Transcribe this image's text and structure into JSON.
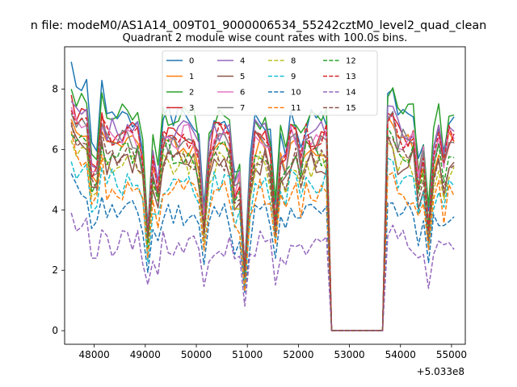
{
  "suptitle": "n file: modeM0/AS1A14_009T01_9000006534_55242cztM0_level2_quad_clean",
  "chart_data": {
    "type": "line",
    "title": "Quadrant 2 module wise count rates with 100.0s bins.",
    "xlabel": "",
    "ylabel": "",
    "x_offset_label": "+5.033e8",
    "xlim": [
      47420,
      55270
    ],
    "ylim": [
      -0.45,
      9.4
    ],
    "x_ticks": [
      48000,
      49000,
      50000,
      51000,
      52000,
      53000,
      54000,
      55000
    ],
    "x_tick_labels": [
      "48000",
      "49000",
      "50000",
      "51000",
      "52000",
      "53000",
      "54000",
      "55000"
    ],
    "y_ticks": [
      0,
      2,
      4,
      6,
      8
    ],
    "y_tick_labels": [
      "0",
      "2",
      "4",
      "6",
      "8"
    ],
    "legend_position": "top-center",
    "legend_ncol": 4,
    "series": [
      {
        "name": "0",
        "color": "#1f77b4",
        "dash": "solid",
        "base": 7.0,
        "first": 8.9
      },
      {
        "name": "1",
        "color": "#ff7f0e",
        "dash": "solid",
        "base": 6.2,
        "first": 7.0
      },
      {
        "name": "2",
        "color": "#2ca02c",
        "dash": "solid",
        "base": 7.1,
        "first": 8.0
      },
      {
        "name": "3",
        "color": "#d62728",
        "dash": "solid",
        "base": 6.5,
        "first": 7.8
      },
      {
        "name": "4",
        "color": "#9467bd",
        "dash": "solid",
        "base": 6.6,
        "first": 7.6
      },
      {
        "name": "5",
        "color": "#8c564b",
        "dash": "solid",
        "base": 5.6,
        "first": 6.8
      },
      {
        "name": "6",
        "color": "#e377c2",
        "dash": "solid",
        "base": 6.4,
        "first": 7.4
      },
      {
        "name": "7",
        "color": "#7f7f7f",
        "dash": "solid",
        "base": 6.3,
        "first": 7.2
      },
      {
        "name": "8",
        "color": "#bcbd22",
        "dash": "dashed",
        "base": 5.5,
        "first": 6.3
      },
      {
        "name": "9",
        "color": "#17becf",
        "dash": "dashed",
        "base": 4.9,
        "first": 5.6
      },
      {
        "name": "10",
        "color": "#1f77b4",
        "dash": "dashed",
        "base": 3.9,
        "first": 5.2
      },
      {
        "name": "11",
        "color": "#ff7f0e",
        "dash": "dashed",
        "base": 4.6,
        "first": 6.6
      },
      {
        "name": "12",
        "color": "#2ca02c",
        "dash": "dashed",
        "base": 5.9,
        "first": 6.5
      },
      {
        "name": "13",
        "color": "#d62728",
        "dash": "dashed",
        "base": 6.4,
        "first": 7.3
      },
      {
        "name": "14",
        "color": "#9467bd",
        "dash": "dashed",
        "base": 2.9,
        "first": 3.9
      },
      {
        "name": "15",
        "color": "#8c564b",
        "dash": "dashed",
        "base": 5.7,
        "first": 6.9
      }
    ],
    "time_axis": {
      "start": 47550,
      "end": 55050,
      "step": 100
    },
    "gap": {
      "start": 52650,
      "end": 53650,
      "value": 0
    },
    "dips": [
      {
        "x": 48000,
        "factor": 0.28
      },
      {
        "x": 49050,
        "factor": 0.5
      },
      {
        "x": 49250,
        "factor": 0.75
      },
      {
        "x": 50150,
        "factor": 0.55
      },
      {
        "x": 50750,
        "factor": 0.72
      },
      {
        "x": 50950,
        "factor": 0.3
      },
      {
        "x": 51550,
        "factor": 0.58
      },
      {
        "x": 51750,
        "factor": 0.85
      },
      {
        "x": 52050,
        "factor": 0.88
      },
      {
        "x": 54350,
        "factor": 0.78
      },
      {
        "x": 54550,
        "factor": 0.55
      },
      {
        "x": 54850,
        "factor": 0.85
      }
    ]
  }
}
